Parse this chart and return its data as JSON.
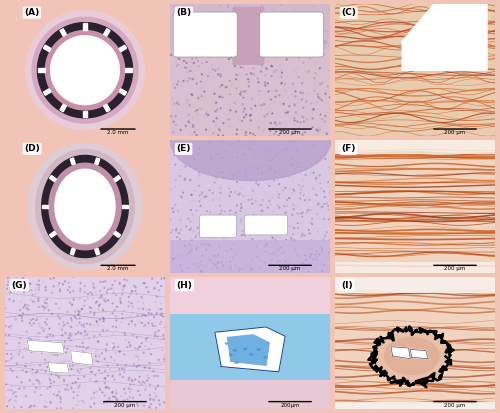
{
  "background_color": "#f2c4b8",
  "panel_labels": [
    "A",
    "B",
    "C",
    "D",
    "E",
    "F",
    "G",
    "H",
    "I"
  ],
  "grid_rows": 3,
  "grid_cols": 3,
  "fig_width": 5.0,
  "fig_height": 4.13,
  "scale_bar_texts": [
    "2.0 mm",
    "200 μm",
    "200 μm",
    "2.0 mm",
    "200 μm",
    "200 μm",
    "200 μm",
    "200μm",
    "200 μm"
  ],
  "label_fontsize": 6.5,
  "scale_fontsize": 4.0,
  "padding": 0.01
}
